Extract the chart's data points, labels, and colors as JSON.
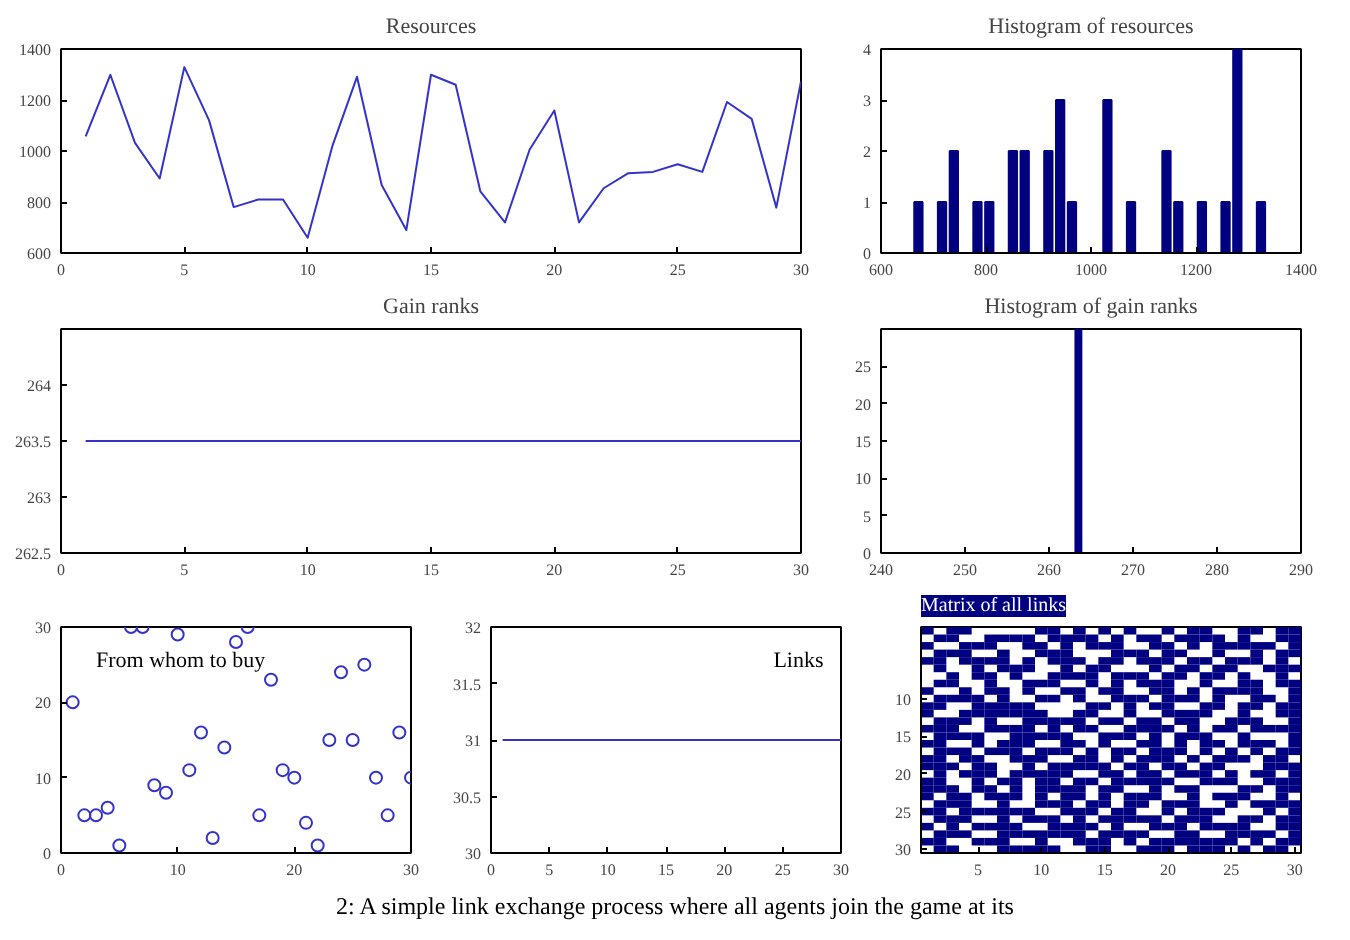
{
  "chart_data": [
    {
      "type": "line",
      "title": "Resources",
      "x": [
        1,
        2,
        3,
        4,
        5,
        6,
        7,
        8,
        9,
        10,
        11,
        12,
        13,
        14,
        15,
        16,
        17,
        18,
        19,
        20,
        21,
        22,
        23,
        24,
        25,
        26,
        27,
        28,
        29,
        30
      ],
      "series": [
        {
          "color": "#3333cc",
          "values": [
            1057,
            1299,
            1032,
            892,
            1329,
            1121,
            780,
            810,
            810,
            660,
            1019,
            1291,
            867,
            690,
            1299,
            1260,
            842,
            720,
            1006,
            1159,
            720,
            854,
            913,
            918,
            948,
            918,
            1192,
            1126,
            778,
            1273
          ]
        }
      ],
      "xlim": [
        0,
        30
      ],
      "xticks": [
        0,
        5,
        10,
        15,
        20,
        25,
        30
      ],
      "ylim": [
        600,
        1400
      ],
      "yticks": [
        600,
        800,
        1000,
        1200,
        1400
      ],
      "grid": false
    },
    {
      "type": "histogram",
      "title": "Histogram of resources",
      "bins": [
        660,
        682.5,
        705,
        727.5,
        750,
        772.5,
        795,
        817.5,
        840,
        862.5,
        885,
        907.5,
        930,
        952.5,
        975,
        997.5,
        1020,
        1042.5,
        1065,
        1087.5,
        1110,
        1132.5,
        1155,
        1177.5,
        1200,
        1222.5,
        1245,
        1267.5,
        1290,
        1312.5,
        1335
      ],
      "values": [
        1,
        0,
        1,
        2,
        0,
        1,
        1,
        0,
        2,
        2,
        0,
        2,
        3,
        1,
        0,
        0,
        3,
        0,
        1,
        0,
        0,
        2,
        1,
        0,
        1,
        0,
        1,
        4,
        0,
        1
      ],
      "color": "#000080",
      "xlim": [
        600,
        1400
      ],
      "xticks": [
        600,
        800,
        1000,
        1200,
        1400
      ],
      "ylim": [
        0,
        4
      ],
      "yticks": [
        0,
        1,
        2,
        3,
        4
      ],
      "grid": false
    },
    {
      "type": "line",
      "title": "Gain ranks",
      "x": [
        1,
        30
      ],
      "series": [
        {
          "color": "#3333cc",
          "values": [
            263.5,
            263.5
          ]
        }
      ],
      "xlim": [
        0,
        30
      ],
      "xticks": [
        0,
        5,
        10,
        15,
        20,
        25,
        30
      ],
      "ylim": [
        262.5,
        264.5
      ],
      "yticks": [
        262.5,
        263,
        263.5,
        264
      ],
      "grid": false
    },
    {
      "type": "histogram",
      "title": "Histogram of gain ranks",
      "bins": [
        263,
        264
      ],
      "values": [
        30
      ],
      "color": "#000080",
      "xlim": [
        240,
        290
      ],
      "xticks": [
        240,
        250,
        260,
        270,
        280,
        290
      ],
      "ylim": [
        0,
        30
      ],
      "yticks": [
        0,
        5,
        10,
        15,
        20,
        25
      ],
      "grid": false
    },
    {
      "type": "scatter",
      "title": "From whom to buy",
      "marker": "circle",
      "x": [
        1,
        2,
        3,
        4,
        5,
        6,
        7,
        8,
        9,
        10,
        11,
        12,
        13,
        14,
        15,
        16,
        17,
        18,
        19,
        20,
        21,
        22,
        23,
        24,
        25,
        26,
        27,
        28,
        29,
        30
      ],
      "series": [
        {
          "color": "#3333cc",
          "values": [
            20,
            5,
            5,
            6,
            1,
            30,
            30,
            9,
            8,
            29,
            11,
            16,
            2,
            14,
            28,
            30,
            5,
            23,
            11,
            10,
            4,
            1,
            15,
            24,
            15,
            25,
            10,
            5,
            16,
            10
          ]
        }
      ],
      "xlim": [
        0,
        30
      ],
      "xticks": [
        0,
        10,
        20,
        30
      ],
      "ylim": [
        0,
        30
      ],
      "yticks": [
        0,
        10,
        20,
        30
      ],
      "grid": false
    },
    {
      "type": "line",
      "title": "Links",
      "x": [
        1,
        30
      ],
      "series": [
        {
          "color": "#3333cc",
          "values": [
            31,
            31
          ]
        }
      ],
      "xlim": [
        0,
        30
      ],
      "xticks": [
        0,
        5,
        10,
        15,
        20,
        25,
        30
      ],
      "ylim": [
        30,
        32
      ],
      "yticks": [
        30,
        30.5,
        31,
        31.5,
        32
      ],
      "grid": false
    },
    {
      "type": "scatter",
      "title": "Matrix of all links",
      "marker": "square",
      "xlim": [
        0.5,
        30.5
      ],
      "xticks": [
        5,
        10,
        15,
        20,
        25,
        30
      ],
      "ylim": [
        30.5,
        0.5
      ],
      "yticks": [
        10,
        15,
        20,
        25,
        30
      ],
      "grid": false,
      "series": [
        {
          "color": "#000080",
          "x": [
            1,
            3,
            4,
            10,
            11,
            13,
            15,
            17,
            20,
            22,
            23,
            26,
            27,
            29,
            30
          ],
          "values": [
            1,
            1,
            1,
            1,
            1,
            1,
            1,
            1,
            1,
            1,
            1,
            1,
            1,
            1,
            1
          ]
        },
        {
          "color": "#000080",
          "x": [
            2,
            3,
            6,
            7,
            8,
            9,
            11,
            12,
            13,
            14,
            16,
            18,
            19,
            21,
            22,
            23,
            24,
            26,
            29,
            30
          ],
          "values": [
            2,
            2,
            2,
            2,
            2,
            2,
            2,
            2,
            2,
            2,
            2,
            2,
            2,
            2,
            2,
            2,
            2,
            2,
            2,
            2
          ]
        },
        {
          "color": "#000080",
          "x": [
            1,
            4,
            5,
            6,
            9,
            10,
            12,
            14,
            15,
            16,
            19,
            20,
            22,
            24,
            25,
            26,
            27,
            28,
            30
          ],
          "values": [
            3,
            3,
            3,
            3,
            3,
            3,
            3,
            3,
            3,
            3,
            3,
            3,
            3,
            3,
            3,
            3,
            3,
            3,
            3
          ]
        },
        {
          "color": "#000080",
          "x": [
            2,
            3,
            4,
            7,
            10,
            11,
            12,
            16,
            17,
            18,
            20,
            21,
            24,
            27,
            29,
            30
          ],
          "values": [
            4,
            4,
            4,
            4,
            4,
            4,
            4,
            4,
            4,
            4,
            4,
            4,
            4,
            4,
            4,
            4
          ]
        },
        {
          "color": "#000080",
          "x": [
            1,
            2,
            4,
            5,
            6,
            7,
            9,
            11,
            12,
            13,
            15,
            16,
            18,
            19,
            20,
            22,
            23,
            25,
            26,
            27,
            29
          ],
          "values": [
            5,
            5,
            5,
            5,
            5,
            5,
            5,
            5,
            5,
            5,
            5,
            5,
            5,
            5,
            5,
            5,
            5,
            5,
            5,
            5,
            5
          ]
        },
        {
          "color": "#000080",
          "x": [
            2,
            5,
            7,
            8,
            9,
            12,
            14,
            15,
            19,
            21,
            22,
            24,
            25,
            28,
            29,
            30
          ],
          "values": [
            6,
            6,
            6,
            6,
            6,
            6,
            6,
            6,
            6,
            6,
            6,
            6,
            6,
            6,
            6,
            6
          ]
        },
        {
          "color": "#000080",
          "x": [
            3,
            5,
            6,
            8,
            11,
            12,
            13,
            14,
            16,
            17,
            18,
            20,
            21,
            23,
            24,
            26,
            29
          ],
          "values": [
            7,
            7,
            7,
            7,
            7,
            7,
            7,
            7,
            7,
            7,
            7,
            7,
            7,
            7,
            7,
            7,
            7
          ]
        },
        {
          "color": "#000080",
          "x": [
            2,
            3,
            6,
            9,
            10,
            11,
            14,
            16,
            18,
            19,
            20,
            23,
            26,
            27,
            29,
            30
          ],
          "values": [
            8,
            8,
            8,
            8,
            8,
            8,
            8,
            8,
            8,
            8,
            8,
            8,
            8,
            8,
            8,
            8
          ]
        },
        {
          "color": "#000080",
          "x": [
            1,
            4,
            6,
            7,
            9,
            12,
            13,
            15,
            16,
            19,
            20,
            22,
            24,
            25,
            26,
            27,
            30
          ],
          "values": [
            9,
            9,
            9,
            9,
            9,
            9,
            9,
            9,
            9,
            9,
            9,
            9,
            9,
            9,
            9,
            9,
            9
          ]
        },
        {
          "color": "#000080",
          "x": [
            2,
            3,
            4,
            5,
            7,
            10,
            11,
            13,
            16,
            17,
            18,
            20,
            21,
            22,
            24,
            27,
            28,
            30
          ],
          "values": [
            10,
            10,
            10,
            10,
            10,
            10,
            10,
            10,
            10,
            10,
            10,
            10,
            10,
            10,
            10,
            10,
            10,
            10
          ]
        },
        {
          "color": "#000080",
          "x": [
            1,
            2,
            5,
            6,
            7,
            8,
            9,
            14,
            15,
            17,
            19,
            20,
            23,
            24,
            26,
            27,
            29,
            30
          ],
          "values": [
            11,
            11,
            11,
            11,
            11,
            11,
            11,
            11,
            11,
            11,
            11,
            11,
            11,
            11,
            11,
            11,
            11,
            11
          ]
        },
        {
          "color": "#000080",
          "x": [
            1,
            4,
            5,
            6,
            7,
            8,
            9,
            10,
            13,
            14,
            17,
            20,
            21,
            22,
            23,
            26,
            29,
            30
          ],
          "values": [
            12,
            12,
            12,
            12,
            12,
            12,
            12,
            12,
            12,
            12,
            12,
            12,
            12,
            12,
            12,
            12,
            12,
            12
          ]
        },
        {
          "color": "#000080",
          "x": [
            2,
            3,
            4,
            6,
            9,
            10,
            11,
            12,
            13,
            15,
            16,
            18,
            19,
            21,
            22,
            25,
            26,
            27,
            30
          ],
          "values": [
            13,
            13,
            13,
            13,
            13,
            13,
            13,
            13,
            13,
            13,
            13,
            13,
            13,
            13,
            13,
            13,
            13,
            13,
            13
          ]
        },
        {
          "color": "#000080",
          "x": [
            1,
            2,
            3,
            6,
            7,
            8,
            9,
            11,
            13,
            14,
            17,
            18,
            19,
            20,
            22,
            24,
            25,
            27,
            28,
            29,
            30
          ],
          "values": [
            14,
            14,
            14,
            14,
            14,
            14,
            14,
            14,
            14,
            14,
            14,
            14,
            14,
            14,
            14,
            14,
            14,
            14,
            14,
            14,
            14
          ]
        },
        {
          "color": "#000080",
          "x": [
            2,
            3,
            4,
            5,
            8,
            9,
            10,
            11,
            12,
            15,
            16,
            17,
            19,
            21,
            22,
            23,
            26,
            30
          ],
          "values": [
            15,
            15,
            15,
            15,
            15,
            15,
            15,
            15,
            15,
            15,
            15,
            15,
            15,
            15,
            15,
            15,
            15,
            15
          ]
        },
        {
          "color": "#000080",
          "x": [
            1,
            2,
            5,
            7,
            8,
            9,
            12,
            13,
            15,
            18,
            19,
            21,
            23,
            24,
            26,
            27,
            28,
            30
          ],
          "values": [
            16,
            16,
            16,
            16,
            16,
            16,
            16,
            16,
            16,
            16,
            16,
            16,
            16,
            16,
            16,
            16,
            16,
            16
          ]
        },
        {
          "color": "#000080",
          "x": [
            2,
            3,
            4,
            6,
            7,
            8,
            10,
            11,
            12,
            14,
            16,
            17,
            19,
            20,
            21,
            23,
            25,
            27,
            29,
            30
          ],
          "values": [
            17,
            17,
            17,
            17,
            17,
            17,
            17,
            17,
            17,
            17,
            17,
            17,
            17,
            17,
            17,
            17,
            17,
            17,
            17,
            17
          ]
        },
        {
          "color": "#000080",
          "x": [
            1,
            2,
            4,
            5,
            8,
            9,
            10,
            13,
            14,
            16,
            18,
            19,
            20,
            22,
            24,
            25,
            26,
            28,
            29
          ],
          "values": [
            18,
            18,
            18,
            18,
            18,
            18,
            18,
            18,
            18,
            18,
            18,
            18,
            18,
            18,
            18,
            18,
            18,
            18,
            18
          ]
        },
        {
          "color": "#000080",
          "x": [
            1,
            2,
            3,
            5,
            6,
            9,
            11,
            12,
            13,
            14,
            15,
            17,
            18,
            20,
            21,
            23,
            24,
            28,
            29,
            30
          ],
          "values": [
            19,
            19,
            19,
            19,
            19,
            19,
            19,
            19,
            19,
            19,
            19,
            19,
            19,
            19,
            19,
            19,
            19,
            19,
            19,
            19
          ]
        },
        {
          "color": "#000080",
          "x": [
            2,
            4,
            5,
            6,
            8,
            9,
            10,
            11,
            12,
            15,
            16,
            18,
            19,
            21,
            22,
            23,
            25,
            27,
            28,
            30
          ],
          "values": [
            20,
            20,
            20,
            20,
            20,
            20,
            20,
            20,
            20,
            20,
            20,
            20,
            20,
            20,
            20,
            20,
            20,
            20,
            20,
            20
          ]
        },
        {
          "color": "#000080",
          "x": [
            1,
            2,
            5,
            7,
            8,
            10,
            11,
            13,
            14,
            16,
            17,
            18,
            19,
            20,
            23,
            24,
            25,
            28,
            29,
            30
          ],
          "values": [
            21,
            21,
            21,
            21,
            21,
            21,
            21,
            21,
            21,
            21,
            21,
            21,
            21,
            21,
            21,
            21,
            21,
            21,
            21,
            21
          ]
        },
        {
          "color": "#000080",
          "x": [
            1,
            2,
            3,
            5,
            6,
            8,
            10,
            11,
            12,
            13,
            15,
            16,
            19,
            21,
            22,
            26,
            27,
            29,
            30
          ],
          "values": [
            22,
            22,
            22,
            22,
            22,
            22,
            22,
            22,
            22,
            22,
            22,
            22,
            22,
            22,
            22,
            22,
            22,
            22,
            22
          ]
        },
        {
          "color": "#000080",
          "x": [
            1,
            3,
            4,
            6,
            7,
            8,
            10,
            12,
            13,
            15,
            17,
            18,
            19,
            22,
            24,
            25,
            26,
            29
          ],
          "values": [
            23,
            23,
            23,
            23,
            23,
            23,
            23,
            23,
            23,
            23,
            23,
            23,
            23,
            23,
            23,
            23,
            23,
            23
          ]
        },
        {
          "color": "#000080",
          "x": [
            2,
            3,
            4,
            7,
            10,
            11,
            12,
            14,
            15,
            17,
            18,
            20,
            21,
            22,
            25,
            27,
            28,
            29,
            30
          ],
          "values": [
            24,
            24,
            24,
            24,
            24,
            24,
            24,
            24,
            24,
            24,
            24,
            24,
            24,
            24,
            24,
            24,
            24,
            24,
            24
          ]
        },
        {
          "color": "#000080",
          "x": [
            1,
            2,
            4,
            5,
            6,
            7,
            8,
            9,
            12,
            13,
            14,
            16,
            17,
            20,
            22,
            23,
            24,
            28,
            30
          ],
          "values": [
            25,
            25,
            25,
            25,
            25,
            25,
            25,
            25,
            25,
            25,
            25,
            25,
            25,
            25,
            25,
            25,
            25,
            25,
            25
          ]
        },
        {
          "color": "#000080",
          "x": [
            2,
            3,
            4,
            7,
            9,
            10,
            11,
            13,
            15,
            16,
            17,
            18,
            19,
            21,
            22,
            23,
            26,
            27,
            29,
            30
          ],
          "values": [
            26,
            26,
            26,
            26,
            26,
            26,
            26,
            26,
            26,
            26,
            26,
            26,
            26,
            26,
            26,
            26,
            26,
            26,
            26,
            26
          ]
        },
        {
          "color": "#000080",
          "x": [
            1,
            3,
            5,
            6,
            7,
            8,
            11,
            12,
            13,
            14,
            16,
            19,
            20,
            21,
            23,
            24,
            25,
            26,
            29,
            30
          ],
          "values": [
            27,
            27,
            27,
            27,
            27,
            27,
            27,
            27,
            27,
            27,
            27,
            27,
            27,
            27,
            27,
            27,
            27,
            27,
            27,
            27
          ]
        },
        {
          "color": "#000080",
          "x": [
            2,
            3,
            4,
            7,
            8,
            9,
            10,
            11,
            12,
            13,
            15,
            16,
            17,
            18,
            21,
            22,
            25,
            26,
            27,
            28,
            30
          ],
          "values": [
            28,
            28,
            28,
            28,
            28,
            28,
            28,
            28,
            28,
            28,
            28,
            28,
            28,
            28,
            28,
            28,
            28,
            28,
            28,
            28,
            28
          ]
        },
        {
          "color": "#000080",
          "x": [
            1,
            2,
            5,
            6,
            7,
            10,
            13,
            14,
            15,
            17,
            19,
            20,
            21,
            22,
            23,
            24,
            25,
            27,
            29,
            30
          ],
          "values": [
            29,
            29,
            29,
            29,
            29,
            29,
            29,
            29,
            29,
            29,
            29,
            29,
            29,
            29,
            29,
            29,
            29,
            29,
            29,
            29
          ]
        },
        {
          "color": "#000080",
          "x": [
            2,
            3,
            7,
            8,
            9,
            10,
            11,
            14,
            15,
            18,
            19,
            20,
            22,
            23,
            24,
            26,
            28,
            29
          ],
          "values": [
            30,
            30,
            30,
            30,
            30,
            30,
            30,
            30,
            30,
            30,
            30,
            30,
            30,
            30,
            30,
            30,
            30,
            30
          ]
        }
      ],
      "annotations": [
        "2: A simple link exchange process where all agents join the game at its"
      ]
    }
  ]
}
